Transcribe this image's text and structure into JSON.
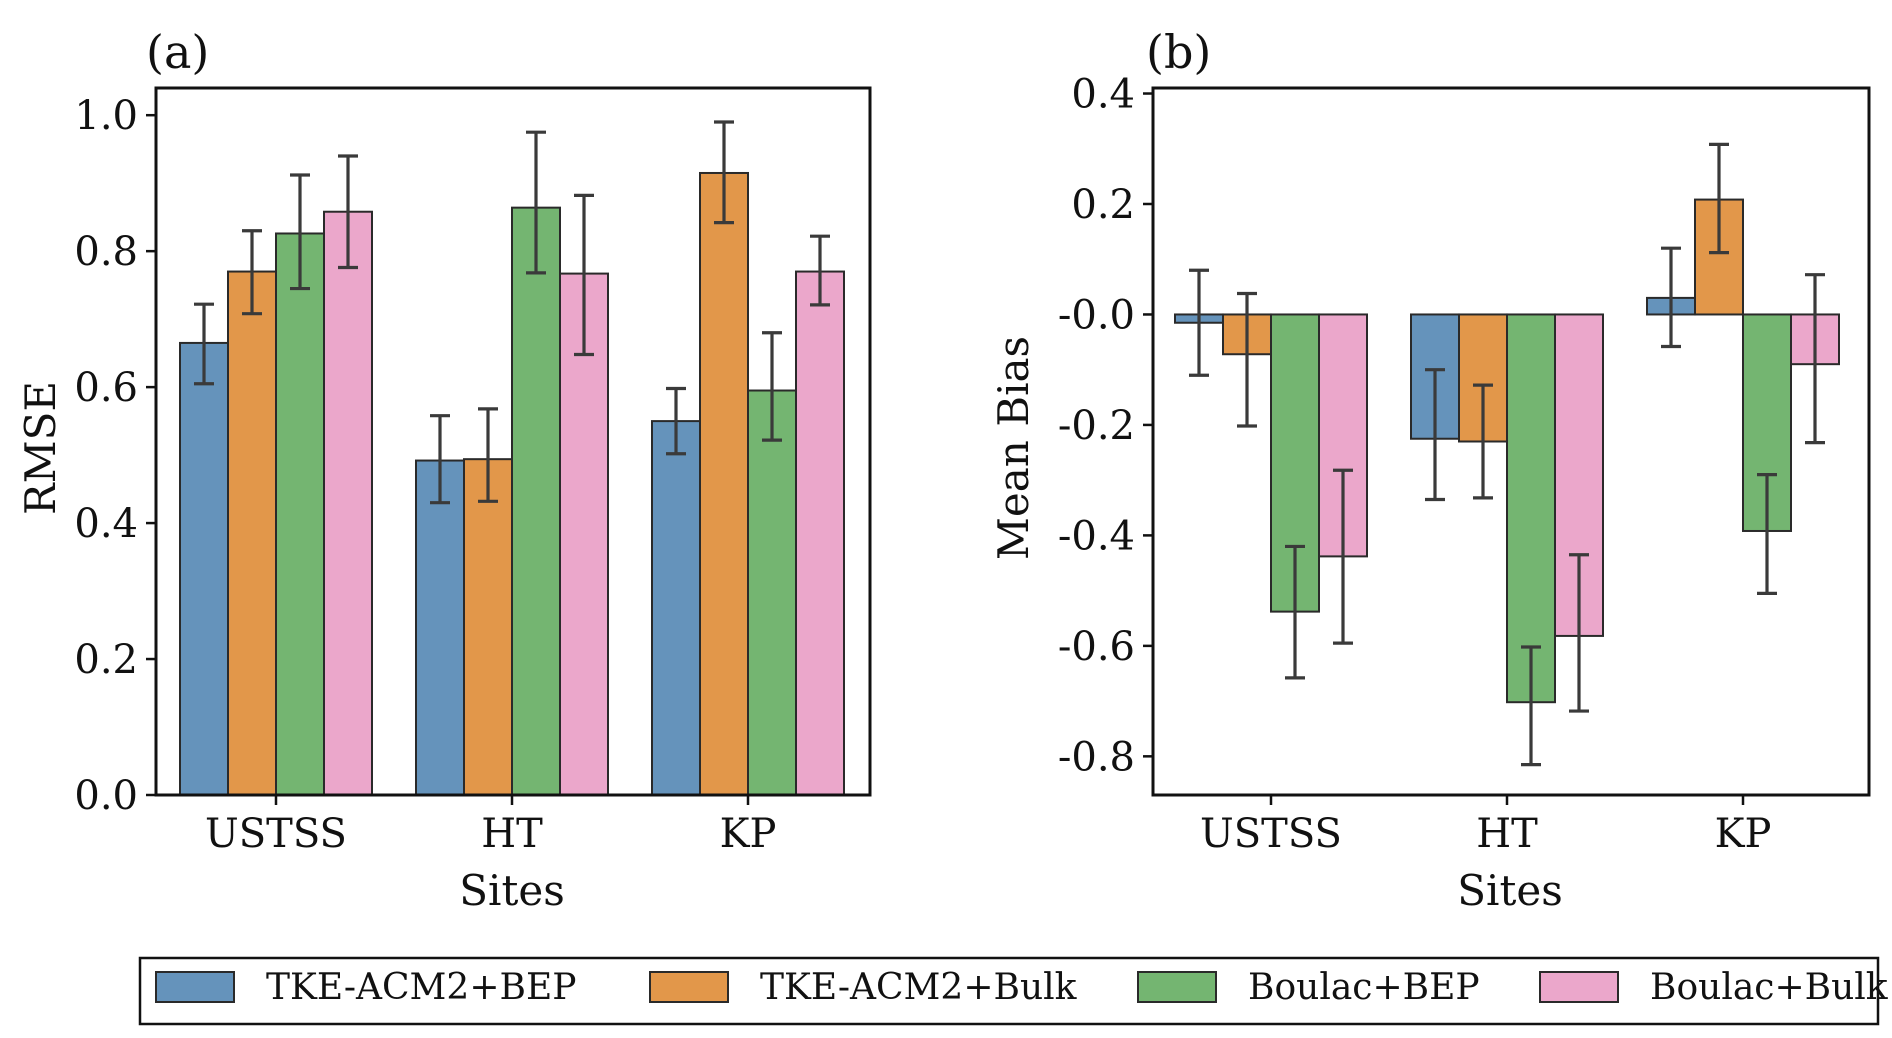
{
  "legend": {
    "entries": [
      {
        "name": "TKE-ACM2+BEP",
        "color": "#6593bb"
      },
      {
        "name": "TKE-ACM2+Bulk",
        "color": "#e2974a"
      },
      {
        "name": "Boulac+BEP",
        "color": "#74b571"
      },
      {
        "name": "Boulac+Bulk",
        "color": "#eba7cb"
      }
    ],
    "placement": "bottom"
  },
  "chart_data": [
    {
      "panel_label": "(a)",
      "type": "bar",
      "xlabel": "Sites",
      "ylabel": "RMSE",
      "ylim": [
        0,
        1.04
      ],
      "yticks": [
        0.0,
        0.2,
        0.4,
        0.6,
        0.8,
        1.0
      ],
      "ytick_labels": [
        "0.0",
        "0.2",
        "0.4",
        "0.6",
        "0.8",
        "1.0"
      ],
      "categories": [
        "USTSS",
        "HT",
        "KP"
      ],
      "grid": false,
      "series": [
        {
          "name": "TKE-ACM2+BEP",
          "values": [
            0.665,
            0.492,
            0.55
          ],
          "err_low": [
            0.605,
            0.43,
            0.502
          ],
          "err_high": [
            0.722,
            0.558,
            0.598
          ]
        },
        {
          "name": "TKE-ACM2+Bulk",
          "values": [
            0.77,
            0.494,
            0.915
          ],
          "err_low": [
            0.708,
            0.432,
            0.842
          ],
          "err_high": [
            0.83,
            0.568,
            0.99
          ]
        },
        {
          "name": "Boulac+BEP",
          "values": [
            0.826,
            0.864,
            0.595
          ],
          "err_low": [
            0.745,
            0.768,
            0.522
          ],
          "err_high": [
            0.912,
            0.975,
            0.68
          ]
        },
        {
          "name": "Boulac+Bulk",
          "values": [
            0.858,
            0.767,
            0.77
          ],
          "err_low": [
            0.776,
            0.648,
            0.721
          ],
          "err_high": [
            0.94,
            0.882,
            0.822
          ]
        }
      ]
    },
    {
      "panel_label": "(b)",
      "type": "bar",
      "xlabel": "Sites",
      "ylabel": "Mean Bias",
      "ylim": [
        -0.87,
        0.41
      ],
      "yticks": [
        0.4,
        0.2,
        0.0,
        -0.2,
        -0.4,
        -0.6,
        -0.8
      ],
      "ytick_labels": [
        "0.4",
        "0.2",
        "-0.0",
        "-0.2",
        "-0.4",
        "-0.6",
        "-0.8"
      ],
      "categories": [
        "USTSS",
        "HT",
        "KP"
      ],
      "grid": false,
      "series": [
        {
          "name": "TKE-ACM2+BEP",
          "values": [
            -0.015,
            -0.225,
            0.03
          ],
          "err_low": [
            -0.11,
            -0.335,
            -0.058
          ],
          "err_high": [
            0.08,
            -0.1,
            0.12
          ]
        },
        {
          "name": "TKE-ACM2+Bulk",
          "values": [
            -0.072,
            -0.23,
            0.208
          ],
          "err_low": [
            -0.202,
            -0.332,
            0.112
          ],
          "err_high": [
            0.038,
            -0.128,
            0.308
          ]
        },
        {
          "name": "Boulac+BEP",
          "values": [
            -0.538,
            -0.702,
            -0.392
          ],
          "err_low": [
            -0.658,
            -0.815,
            -0.505
          ],
          "err_high": [
            -0.42,
            -0.602,
            -0.29
          ]
        },
        {
          "name": "Boulac+Bulk",
          "values": [
            -0.438,
            -0.582,
            -0.09
          ],
          "err_low": [
            -0.595,
            -0.718,
            -0.232
          ],
          "err_high": [
            -0.282,
            -0.435,
            0.072
          ]
        }
      ]
    }
  ]
}
